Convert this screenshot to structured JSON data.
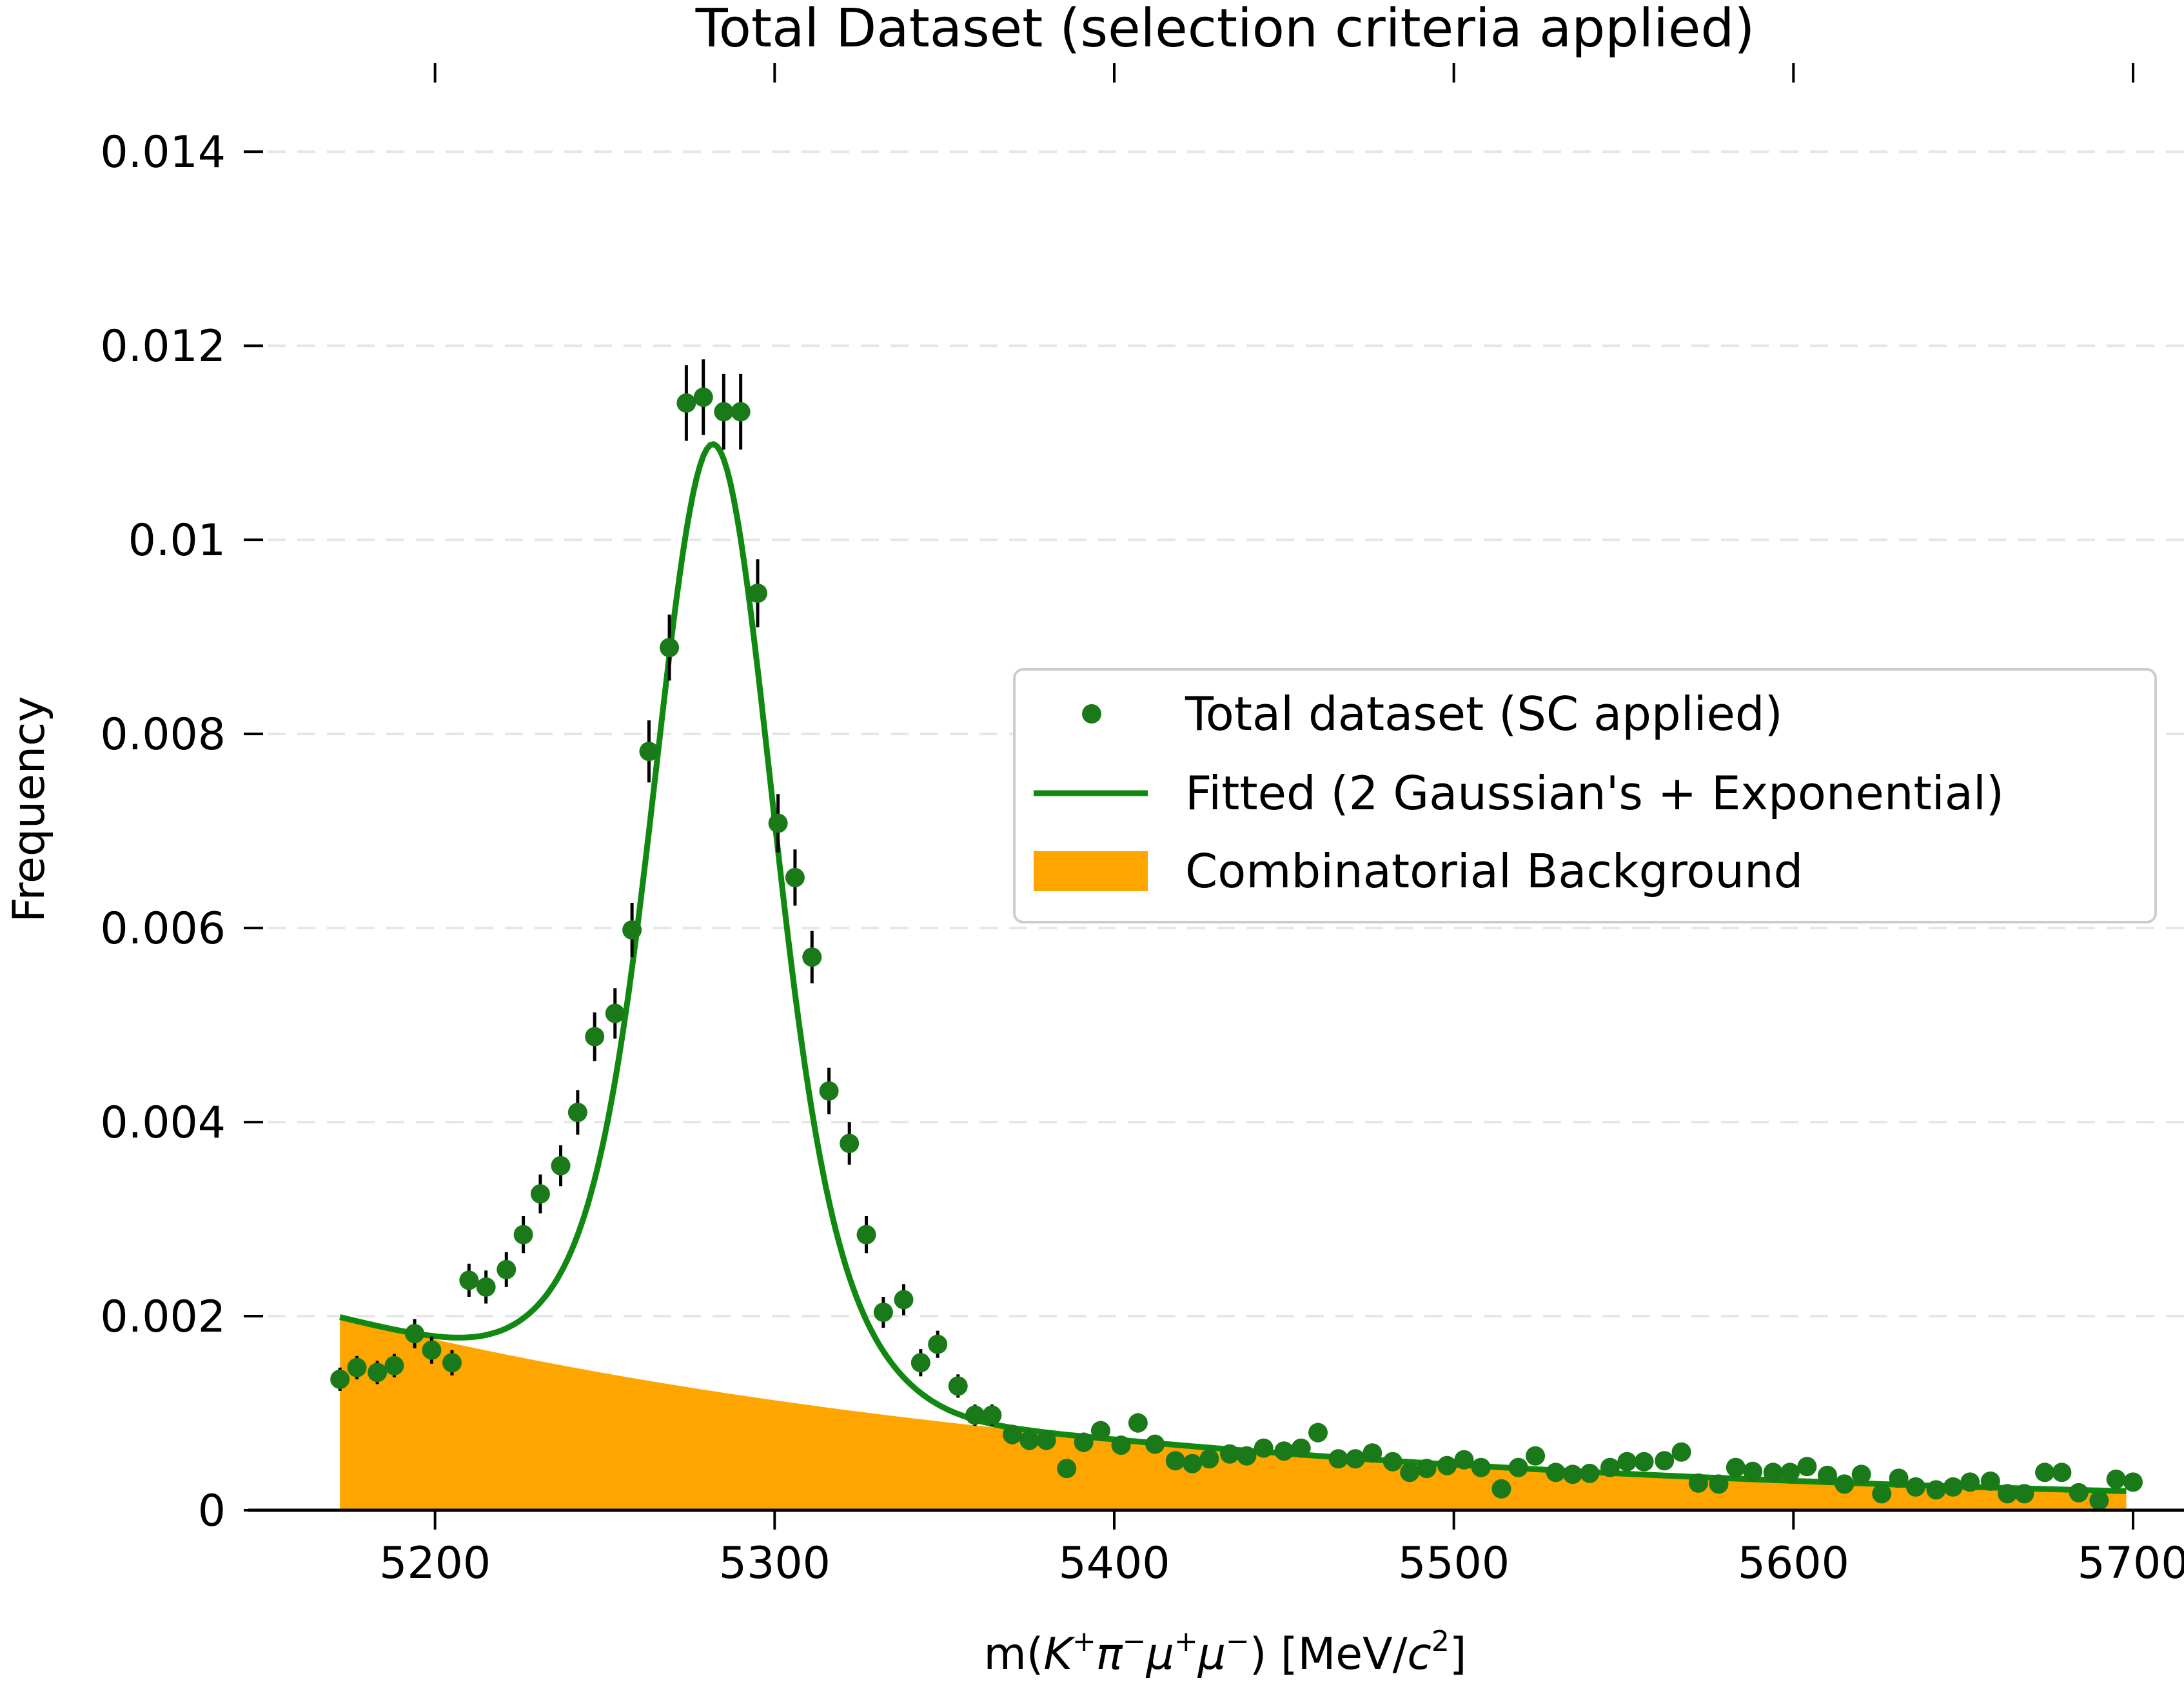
{
  "chart_data": {
    "type": "scatter",
    "title": "Total Dataset (selection criteria applied)",
    "xlabel": "m(K⁺π⁻μ⁺μ⁻) [MeV/c²]",
    "ylabel": "Frequency",
    "xlim": [
      5145,
      5715
    ],
    "ylim": [
      0,
      0.0145
    ],
    "x_ticks": [
      5200,
      5300,
      5400,
      5500,
      5600,
      5700
    ],
    "y_ticks": [
      0,
      0.002,
      0.004,
      0.006,
      0.008,
      0.01,
      0.012,
      0.014
    ],
    "x_tick_labels": [
      "5200",
      "5300",
      "5400",
      "5500",
      "5600",
      "5700"
    ],
    "y_tick_labels": [
      "0",
      "0.002",
      "0.004",
      "0.006",
      "0.008",
      "0.01",
      "0.012",
      "0.014"
    ],
    "grid": "y-dashed",
    "legend_position": "center-right",
    "colors": {
      "points": "#1a7a1a",
      "fit": "#118811",
      "background": "#ffa500",
      "errorbar": "#000000"
    },
    "legend": [
      {
        "label": "Total dataset (SC applied)",
        "kind": "point"
      },
      {
        "label": "Fitted (2 Gaussian's + Exponential)",
        "kind": "line"
      },
      {
        "label": "Combinatorial Background",
        "kind": "patch"
      }
    ],
    "series": [
      {
        "name": "Total dataset (SC applied)",
        "kind": "errorbar",
        "points": [
          [
            5172,
            0.00135,
            0.00012
          ],
          [
            5177,
            0.00147,
            0.00012
          ],
          [
            5183,
            0.00142,
            0.00012
          ],
          [
            5188,
            0.00149,
            0.00012
          ],
          [
            5194,
            0.00182,
            0.00015
          ],
          [
            5199,
            0.00165,
            0.00014
          ],
          [
            5205,
            0.00152,
            0.00013
          ],
          [
            5210,
            0.00237,
            0.00017
          ],
          [
            5215,
            0.0023,
            0.00017
          ],
          [
            5221,
            0.00248,
            0.00018
          ],
          [
            5226,
            0.00284,
            0.00019
          ],
          [
            5231,
            0.00326,
            0.0002
          ],
          [
            5237,
            0.00355,
            0.00021
          ],
          [
            5242,
            0.0041,
            0.00023
          ],
          [
            5247,
            0.00488,
            0.00025
          ],
          [
            5253,
            0.00512,
            0.00026
          ],
          [
            5258,
            0.00598,
            0.00028
          ],
          [
            5263,
            0.00782,
            0.00032
          ],
          [
            5269,
            0.00889,
            0.00034
          ],
          [
            5274,
            0.01141,
            0.00039
          ],
          [
            5279,
            0.01147,
            0.00039
          ],
          [
            5285,
            0.01132,
            0.00039
          ],
          [
            5290,
            0.01132,
            0.00039
          ],
          [
            5295,
            0.00945,
            0.00035
          ],
          [
            5301,
            0.00708,
            0.0003
          ],
          [
            5306,
            0.00652,
            0.00029
          ],
          [
            5311,
            0.0057,
            0.00027
          ],
          [
            5316,
            0.00432,
            0.00024
          ],
          [
            5322,
            0.00378,
            0.00022
          ],
          [
            5327,
            0.00284,
            0.00019
          ],
          [
            5332,
            0.00204,
            0.00016
          ],
          [
            5338,
            0.00217,
            0.00016
          ],
          [
            5343,
            0.00152,
            0.00014
          ],
          [
            5348,
            0.00171,
            0.00014
          ],
          [
            5354,
            0.00128,
            0.00012
          ],
          [
            5359,
            0.00098,
            0.00011
          ],
          [
            5364,
            0.00098,
            0.00011
          ],
          [
            5370,
            0.00078,
            0.0001
          ],
          [
            5375,
            0.00072,
            0.0001
          ],
          [
            5380,
            0.00072,
            0.0001
          ],
          [
            5386,
            0.00043,
            8e-05
          ],
          [
            5391,
            0.0007,
            0.0001
          ],
          [
            5396,
            0.00082,
            0.0001
          ],
          [
            5402,
            0.00067,
            9e-05
          ],
          [
            5407,
            0.0009,
            0.0001
          ],
          [
            5412,
            0.00068,
            9e-05
          ],
          [
            5418,
            0.00051,
            8e-05
          ],
          [
            5423,
            0.00048,
            8e-05
          ],
          [
            5428,
            0.00053,
            8e-05
          ],
          [
            5434,
            0.00058,
            9e-05
          ],
          [
            5439,
            0.00056,
            9e-05
          ],
          [
            5444,
            0.00064,
            9e-05
          ],
          [
            5450,
            0.00061,
            9e-05
          ],
          [
            5455,
            0.00064,
            9e-05
          ],
          [
            5460,
            0.0008,
            0.0001
          ],
          [
            5466,
            0.00053,
            8e-05
          ],
          [
            5471,
            0.00053,
            8e-05
          ],
          [
            5476,
            0.00059,
            9e-05
          ],
          [
            5482,
            0.0005,
            8e-05
          ],
          [
            5487,
            0.00039,
            7e-05
          ],
          [
            5492,
            0.00043,
            8e-05
          ],
          [
            5498,
            0.00046,
            8e-05
          ],
          [
            5503,
            0.00052,
            8e-05
          ],
          [
            5508,
            0.00044,
            8e-05
          ],
          [
            5514,
            0.00022,
            6e-05
          ],
          [
            5519,
            0.00044,
            8e-05
          ],
          [
            5524,
            0.00056,
            9e-05
          ],
          [
            5530,
            0.00039,
            7e-05
          ],
          [
            5535,
            0.00037,
            7e-05
          ],
          [
            5540,
            0.00038,
            7e-05
          ],
          [
            5546,
            0.00044,
            8e-05
          ],
          [
            5551,
            0.0005,
            8e-05
          ],
          [
            5556,
            0.0005,
            8e-05
          ],
          [
            5562,
            0.00051,
            8e-05
          ],
          [
            5567,
            0.0006,
            9e-05
          ],
          [
            5572,
            0.00028,
            6e-05
          ],
          [
            5578,
            0.00027,
            6e-05
          ],
          [
            5583,
            0.00044,
            8e-05
          ],
          [
            5588,
            0.0004,
            7e-05
          ],
          [
            5594,
            0.00039,
            7e-05
          ],
          [
            5599,
            0.00039,
            7e-05
          ],
          [
            5604,
            0.00045,
            8e-05
          ],
          [
            5610,
            0.00036,
            7e-05
          ],
          [
            5615,
            0.00027,
            6e-05
          ],
          [
            5620,
            0.00037,
            7e-05
          ],
          [
            5626,
            0.00017,
            5e-05
          ],
          [
            5631,
            0.00033,
            7e-05
          ],
          [
            5636,
            0.00024,
            6e-05
          ],
          [
            5642,
            0.00021,
            5e-05
          ],
          [
            5647,
            0.00024,
            6e-05
          ],
          [
            5652,
            0.00029,
            6e-05
          ],
          [
            5658,
            0.0003,
            6e-05
          ],
          [
            5663,
            0.00017,
            5e-05
          ],
          [
            5668,
            0.00017,
            5e-05
          ],
          [
            5674,
            0.00039,
            7e-05
          ],
          [
            5679,
            0.00039,
            7e-05
          ],
          [
            5684,
            0.00018,
            5e-05
          ],
          [
            5690,
            0.0001,
            4e-05
          ],
          [
            5695,
            0.00032,
            7e-05
          ],
          [
            5700,
            0.00029,
            6e-05
          ]
        ]
      },
      {
        "name": "Fitted (2 Gaussian's + Exponential)",
        "kind": "line",
        "model": {
          "x_start": 5172,
          "x_end": 5698,
          "exp_amp_at_start": 0.00199,
          "exp_decay": 0.0044,
          "gaussians": [
            {
              "mu": 5282,
              "sigma": 15.5,
              "amp": 0.00632
            },
            {
              "mu": 5282,
              "sigma": 27,
              "amp": 0.00344
            }
          ]
        }
      },
      {
        "name": "Combinatorial Background",
        "kind": "area",
        "model": {
          "x_start": 5172,
          "x_end": 5698,
          "exp_amp_at_start": 0.00199,
          "exp_decay": 0.0044
        }
      }
    ]
  }
}
